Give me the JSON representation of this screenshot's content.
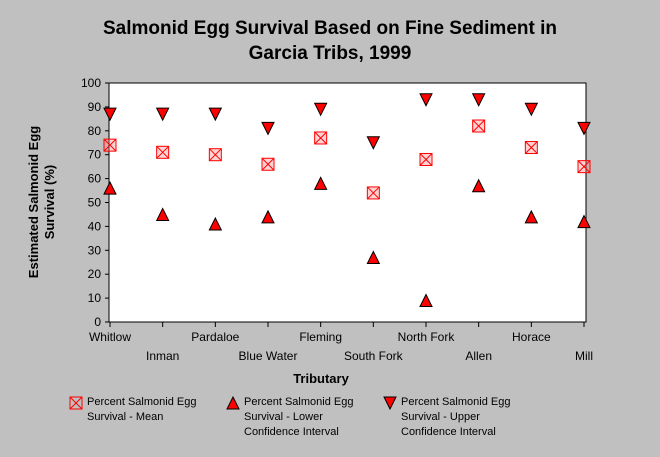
{
  "chart_data": {
    "type": "scatter",
    "title_lines": [
      "Salmonid Egg Survival Based on Fine Sediment in",
      "Garcia Tribs, 1999"
    ],
    "xlabel": "Tributary",
    "ylabel_lines": [
      "Estimated Salmonid Egg",
      "Survival (%)"
    ],
    "ylim": [
      0,
      100
    ],
    "yticks": [
      0,
      10,
      20,
      30,
      40,
      50,
      60,
      70,
      80,
      90,
      100
    ],
    "categories": [
      "Whitlow",
      "Inman",
      "Pardaloe",
      "Blue Water",
      "Fleming",
      "South Fork",
      "North Fork",
      "Allen",
      "Horace",
      "Mill"
    ],
    "grid": false,
    "legend_position": "bottom",
    "series": [
      {
        "name_lines": [
          "Percent Salmonid Egg",
          "Survival - Mean"
        ],
        "marker": "boxed-x",
        "values": [
          74,
          71,
          70,
          66,
          77,
          54,
          68,
          82,
          73,
          65
        ]
      },
      {
        "name_lines": [
          "Percent Salmonid Egg",
          "Survival - Lower",
          "Confidence Interval"
        ],
        "marker": "triangle-up",
        "values": [
          56,
          45,
          41,
          44,
          58,
          27,
          9,
          57,
          44,
          42
        ]
      },
      {
        "name_lines": [
          "Percent Salmonid Egg",
          "Survival - Upper",
          "Confidence Interval"
        ],
        "marker": "triangle-down",
        "values": [
          87,
          87,
          87,
          81,
          89,
          75,
          93,
          93,
          89,
          81
        ]
      }
    ],
    "colors": {
      "background": "#c0c0c0",
      "plot_area": "#ffffff",
      "marker": "#ff0000",
      "mean_marker": "#ff8080"
    }
  }
}
